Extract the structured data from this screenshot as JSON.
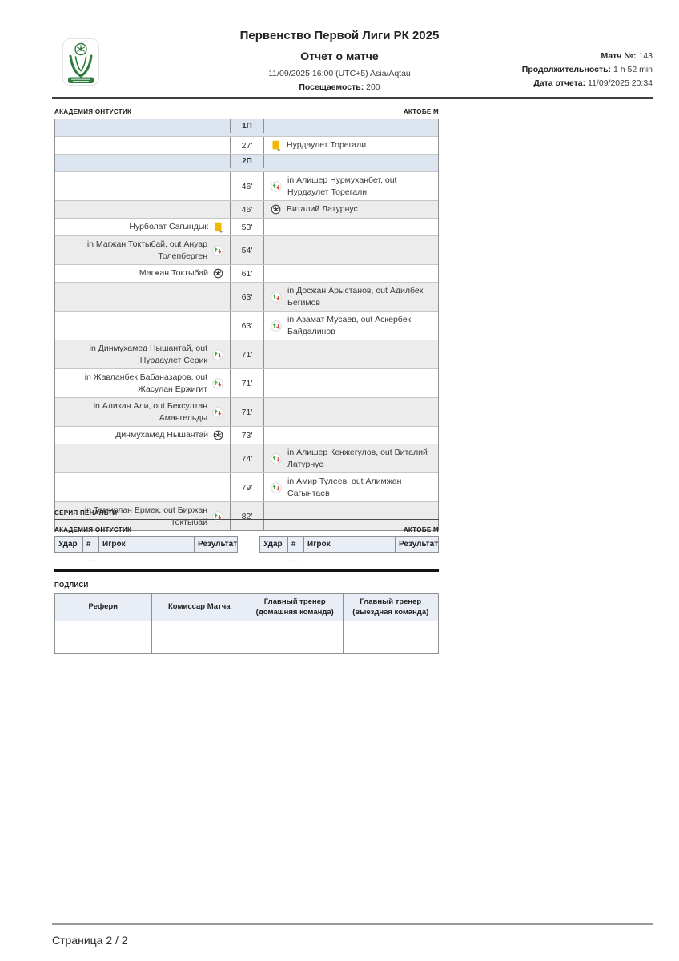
{
  "header": {
    "title": "Первенство Первой Лиги РК 2025",
    "subtitle": "Отчет о матче",
    "datetime": "11/09/2025 16:00 (UTC+5) Asia/Aqtau",
    "attendance_label": "Посещаемость:",
    "attendance_value": "200",
    "match_no_label": "Матч №:",
    "match_no_value": "143",
    "duration_label": "Продолжительность:",
    "duration_value": "1 h 52 min",
    "report_date_label": "Дата отчета:",
    "report_date_value": "11/09/2025 20:34"
  },
  "events": {
    "home_team": "АКАДЕМИЯ ОНТУСТИК",
    "away_team": "АКТОБЕ М",
    "rows": [
      {
        "type": "period",
        "label": "1П"
      },
      {
        "type": "event",
        "side": "away",
        "minute": "27'",
        "icon": "yellow-card",
        "text": "Нурдаулет Торегали"
      },
      {
        "type": "period",
        "label": "2П"
      },
      {
        "type": "event",
        "side": "away",
        "minute": "46'",
        "icon": "substitution",
        "text": "in Алишер Нурмуханбет, out Нурдаулет Торегали"
      },
      {
        "type": "event",
        "side": "away",
        "minute": "46'",
        "icon": "goal",
        "text": "Виталий Латурнус"
      },
      {
        "type": "event",
        "side": "home",
        "minute": "53'",
        "icon": "yellow-card",
        "text": "Нурболат Сагындык"
      },
      {
        "type": "event",
        "side": "home",
        "minute": "54'",
        "icon": "substitution",
        "text": "in Магжан Токтыбай, out Ануар Толепберген"
      },
      {
        "type": "event",
        "side": "home",
        "minute": "61'",
        "icon": "goal",
        "text": "Магжан Токтыбай"
      },
      {
        "type": "event",
        "side": "away",
        "minute": "63'",
        "icon": "substitution",
        "text": "in Досжан Арыстанов, out Адилбек Бегимов"
      },
      {
        "type": "event",
        "side": "away",
        "minute": "63'",
        "icon": "substitution",
        "text": "in Азамат Мусаев, out Аскербек Байдалинов"
      },
      {
        "type": "event",
        "side": "home",
        "minute": "71'",
        "icon": "substitution",
        "text": "in Динмухамед Нышантай, out Нурдаулет Серик"
      },
      {
        "type": "event",
        "side": "home",
        "minute": "71'",
        "icon": "substitution",
        "text": "in Жавланбек Бабаназаров, out Жасулан Ержигит"
      },
      {
        "type": "event",
        "side": "home",
        "minute": "71'",
        "icon": "substitution",
        "text": "in Алихан Али, out Бексултан Амангельды"
      },
      {
        "type": "event",
        "side": "home",
        "minute": "73'",
        "icon": "goal",
        "text": "Динмухамед Нышантай"
      },
      {
        "type": "event",
        "side": "away",
        "minute": "74'",
        "icon": "substitution",
        "text": "in Алишер Кенжегулов, out Виталий Латурнус"
      },
      {
        "type": "event",
        "side": "away",
        "minute": "79'",
        "icon": "substitution",
        "text": "in Амир Тулеев, out Алимжан Сагынтаев"
      },
      {
        "type": "event",
        "side": "home",
        "minute": "82'",
        "icon": "substitution",
        "text": "in Темирлан Ермек, out Биржан Токтыбай"
      }
    ]
  },
  "penalties": {
    "section_title": "СЕРИЯ ПЕНАЛЬТИ",
    "home_team": "АКАДЕМИЯ ОНТУСТИК",
    "away_team": "АКТОБЕ М",
    "columns": [
      "Удар",
      "#",
      "Игрок",
      "Результат"
    ],
    "empty_placeholder": "—"
  },
  "signatures": {
    "section_title": "ПОДЛИСИ",
    "columns": [
      "Рефери",
      "Комиссар Матча",
      "Главный тренер (домашняя команда)",
      "Главный тренер (выездная команда)"
    ]
  },
  "footer": {
    "page": "Страница 2 / 2"
  },
  "colors": {
    "brand_green": "#2e7d3e",
    "period_row_bg": "#dce4ef",
    "alt_row_bg": "#ececec",
    "table_header_bg": "#e9eef6",
    "yellow_card": "#f2b600",
    "sub_in_green": "#4aa847",
    "sub_out_red": "#d24a3e"
  }
}
